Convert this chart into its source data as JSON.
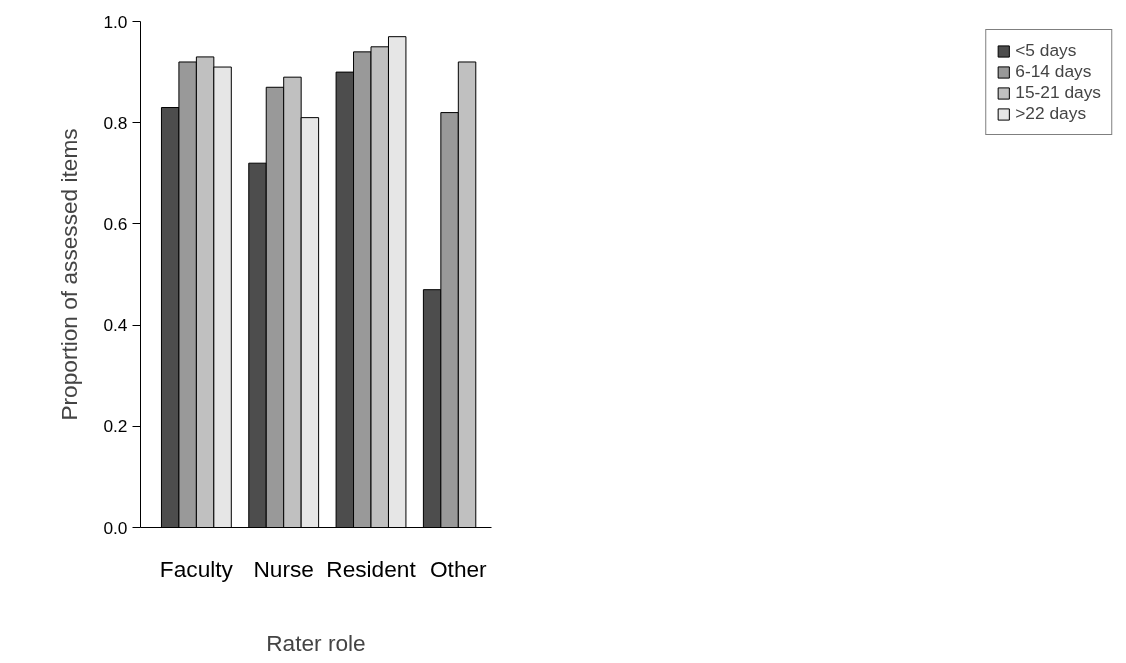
{
  "chart_data": {
    "type": "bar",
    "xlabel": "Rater role",
    "ylabel": "Proportion of assessed items",
    "categories": [
      "Faculty",
      "Nurse",
      "Resident",
      "Other"
    ],
    "series": [
      {
        "name": "<5 days",
        "color": "#4d4d4d",
        "values": [
          0.83,
          0.72,
          0.9,
          0.47
        ]
      },
      {
        "name": "6-14 days",
        "color": "#999999",
        "values": [
          0.92,
          0.87,
          0.94,
          0.82
        ]
      },
      {
        "name": "15-21 days",
        "color": "#c0c0c0",
        "values": [
          0.93,
          0.89,
          0.95,
          0.92
        ]
      },
      {
        "name": ">22 days",
        "color": "#e6e6e6",
        "values": [
          0.91,
          0.81,
          0.97,
          null
        ]
      }
    ],
    "ylim": [
      0,
      1
    ],
    "yticks": [
      {
        "value": 0,
        "label": "0.0"
      },
      0.2,
      0.4,
      0.6,
      0.8,
      {
        "value": 1,
        "label": "1.0"
      }
    ],
    "grid": false,
    "legend": "top right"
  }
}
